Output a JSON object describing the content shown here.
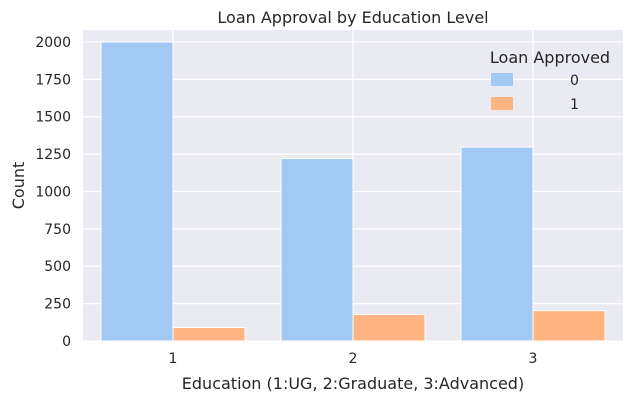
{
  "chart_data": {
    "type": "bar",
    "title": "Loan Approval by Education Level",
    "xlabel": "Education (1:UG, 2:Graduate, 3:Advanced)",
    "ylabel": "Count",
    "categories": [
      "1",
      "2",
      "3"
    ],
    "ylim": [
      0,
      2080
    ],
    "yticks": [
      0,
      250,
      500,
      750,
      1000,
      1250,
      1500,
      1750,
      2000
    ],
    "grid": true,
    "legend": {
      "title": "Loan Approved",
      "placement": "top-right"
    },
    "series": [
      {
        "name": "0",
        "color": "#a1c9f4",
        "values": [
          2000,
          1220,
          1297
        ]
      },
      {
        "name": "1",
        "color": "#ffb482",
        "values": [
          90,
          177,
          203
        ]
      }
    ],
    "background": "#eaeaf2"
  }
}
